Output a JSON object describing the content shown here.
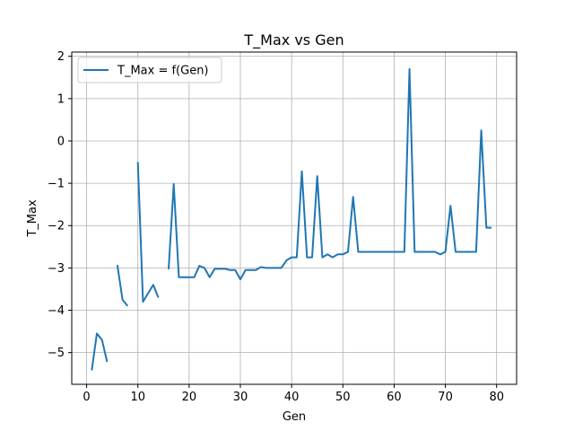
{
  "chart_data": {
    "type": "line",
    "title": "T_Max vs Gen",
    "xlabel": "Gen",
    "ylabel": "T_Max",
    "xlim": [
      -2.9,
      83.9
    ],
    "ylim": [
      -5.75,
      2.1
    ],
    "x_ticks": [
      0,
      10,
      20,
      30,
      40,
      50,
      60,
      70,
      80
    ],
    "y_ticks": [
      -5,
      -4,
      -3,
      -2,
      -1,
      0,
      1,
      2
    ],
    "x_tick_labels": [
      "0",
      "10",
      "20",
      "30",
      "40",
      "50",
      "60",
      "70",
      "80"
    ],
    "y_tick_labels": [
      "−5",
      "−4",
      "−3",
      "−2",
      "−1",
      "0",
      "1",
      "2"
    ],
    "grid": true,
    "legend_position": "top-left",
    "color": "#1f77b4",
    "series": [
      {
        "name": "T_Max = f(Gen)",
        "x": [
          1,
          2,
          3,
          4,
          5,
          6,
          7,
          8,
          9,
          10,
          11,
          12,
          13,
          14,
          15,
          16,
          17,
          18,
          19,
          20,
          21,
          22,
          23,
          24,
          25,
          26,
          27,
          28,
          29,
          30,
          31,
          32,
          33,
          34,
          35,
          36,
          37,
          38,
          39,
          40,
          41,
          42,
          43,
          44,
          45,
          46,
          47,
          48,
          49,
          50,
          51,
          52,
          53,
          54,
          55,
          56,
          57,
          58,
          59,
          60,
          61,
          62,
          63,
          64,
          65,
          66,
          67,
          68,
          69,
          70,
          71,
          72,
          73,
          74,
          75,
          76,
          77,
          78,
          79
        ],
        "y": [
          -5.42,
          -4.55,
          -4.7,
          -5.22,
          null,
          -2.93,
          -3.75,
          -3.9,
          null,
          -0.5,
          -3.8,
          -3.6,
          -3.4,
          -3.7,
          null,
          -3.03,
          -1.02,
          -3.22,
          -3.22,
          -3.22,
          -3.22,
          -2.95,
          -3.0,
          -3.22,
          -3.02,
          -3.02,
          -3.02,
          -3.05,
          -3.05,
          -3.27,
          -3.05,
          -3.05,
          -3.05,
          -2.98,
          -3.0,
          -3.0,
          -3.0,
          -3.0,
          -2.82,
          -2.75,
          -2.75,
          -0.72,
          -2.75,
          -2.75,
          -0.83,
          -2.75,
          -2.68,
          -2.75,
          -2.68,
          -2.68,
          -2.62,
          -1.32,
          -2.62,
          -2.62,
          -2.62,
          -2.62,
          -2.62,
          -2.62,
          -2.62,
          -2.62,
          -2.62,
          -2.62,
          1.7,
          -2.62,
          -2.62,
          -2.62,
          -2.62,
          -2.62,
          -2.68,
          -2.62,
          -1.53,
          -2.62,
          -2.62,
          -2.62,
          -2.62,
          -2.62,
          0.25,
          -2.05,
          -2.05
        ]
      }
    ]
  }
}
